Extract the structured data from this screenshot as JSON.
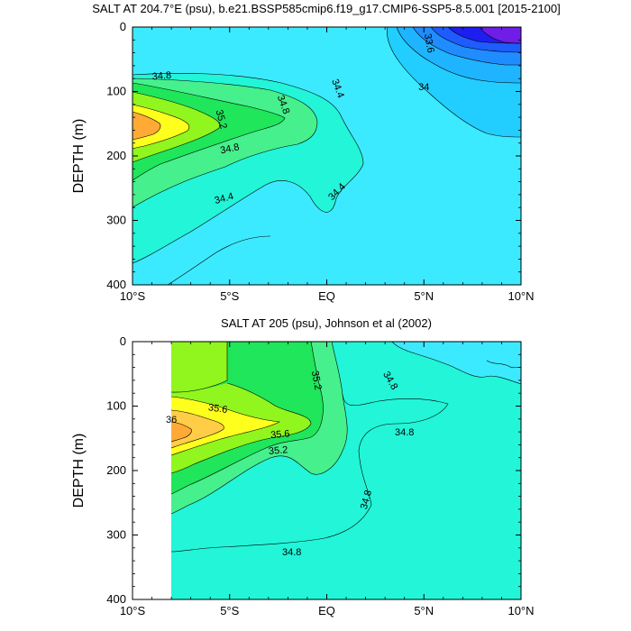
{
  "chart_data": [
    {
      "type": "heatmap",
      "subtype": "filled-contour depth section",
      "title": "SALT AT 204.7°E (psu), b.e21.BSSP585cmip6.f19_g17.CMIP6-SSP5-8.5.001 [2015-2100]",
      "ylabel": "DEPTH (m)",
      "xlim": [
        -10,
        10
      ],
      "ylim": [
        400,
        0
      ],
      "xticks": [
        {
          "value": -10,
          "label": "10°S"
        },
        {
          "value": -5,
          "label": "5°S"
        },
        {
          "value": 0,
          "label": "EQ"
        },
        {
          "value": 5,
          "label": "5°N"
        },
        {
          "value": 10,
          "label": "10°N"
        }
      ],
      "yticks": [
        {
          "value": 0,
          "label": "0"
        },
        {
          "value": 100,
          "label": "100"
        },
        {
          "value": 200,
          "label": "200"
        },
        {
          "value": 300,
          "label": "300"
        },
        {
          "value": 400,
          "label": "400"
        }
      ],
      "contour_labels": [
        {
          "text": "34.8",
          "lat": -8.5,
          "depth": 75,
          "angle": -5
        },
        {
          "text": "35.2",
          "lat": -5.4,
          "depth": 143,
          "angle": 75
        },
        {
          "text": "34.8",
          "lat": -2.2,
          "depth": 120,
          "angle": 70
        },
        {
          "text": "34.4",
          "lat": 0.6,
          "depth": 95,
          "angle": 70
        },
        {
          "text": "34",
          "lat": 5.0,
          "depth": 92,
          "angle": 0
        },
        {
          "text": "33.6",
          "lat": 5.3,
          "depth": 25,
          "angle": 80
        },
        {
          "text": "34.8",
          "lat": -5.0,
          "depth": 188,
          "angle": -12
        },
        {
          "text": "34.4",
          "lat": -5.3,
          "depth": 265,
          "angle": -15
        },
        {
          "text": "34.4",
          "lat": 0.5,
          "depth": 255,
          "angle": -45
        }
      ]
    },
    {
      "type": "heatmap",
      "subtype": "filled-contour depth section",
      "title": "SALT AT 205 (psu), Johnson et al (2002)",
      "ylabel": "DEPTH (m)",
      "xlim": [
        -10,
        10
      ],
      "ylim": [
        400,
        0
      ],
      "xticks": [
        {
          "value": -10,
          "label": "10°S"
        },
        {
          "value": -5,
          "label": "5°S"
        },
        {
          "value": 0,
          "label": "EQ"
        },
        {
          "value": 5,
          "label": "5°N"
        },
        {
          "value": 10,
          "label": "10°N"
        }
      ],
      "yticks": [
        {
          "value": 0,
          "label": "0"
        },
        {
          "value": 100,
          "label": "100"
        },
        {
          "value": 200,
          "label": "200"
        },
        {
          "value": 300,
          "label": "300"
        },
        {
          "value": 400,
          "label": "400"
        }
      ],
      "contour_labels": [
        {
          "text": "35.6",
          "lat": -5.6,
          "depth": 103,
          "angle": 8
        },
        {
          "text": "36",
          "lat": -8.0,
          "depth": 120,
          "angle": 0
        },
        {
          "text": "35.6",
          "lat": -2.4,
          "depth": 143,
          "angle": -5
        },
        {
          "text": "35.2",
          "lat": -2.5,
          "depth": 168,
          "angle": -5
        },
        {
          "text": "35.2",
          "lat": -0.5,
          "depth": 60,
          "angle": 80
        },
        {
          "text": "34.8",
          "lat": 3.3,
          "depth": 60,
          "angle": 60
        },
        {
          "text": "34.8",
          "lat": 4.0,
          "depth": 140,
          "angle": 0
        },
        {
          "text": "34.8",
          "lat": 2.0,
          "depth": 245,
          "angle": -75
        },
        {
          "text": "34.8",
          "lat": -1.8,
          "depth": 326,
          "angle": 0
        }
      ]
    }
  ],
  "colors": {
    "deep_purple": "#6e1ee6",
    "blue_dark": "#1e1ef0",
    "blue": "#1e5cff",
    "blue_mid": "#1f8cff",
    "blue_light": "#1fb4ff",
    "cyan_blue": "#22cdff",
    "cyan": "#3ceaff",
    "aqua_green": "#22f5d8",
    "green_light": "#46f08c",
    "green": "#1fe65a",
    "lime": "#91f51e",
    "yellow": "#ffff1e",
    "orange_light": "#ffcd46",
    "orange": "#ffaa37"
  }
}
